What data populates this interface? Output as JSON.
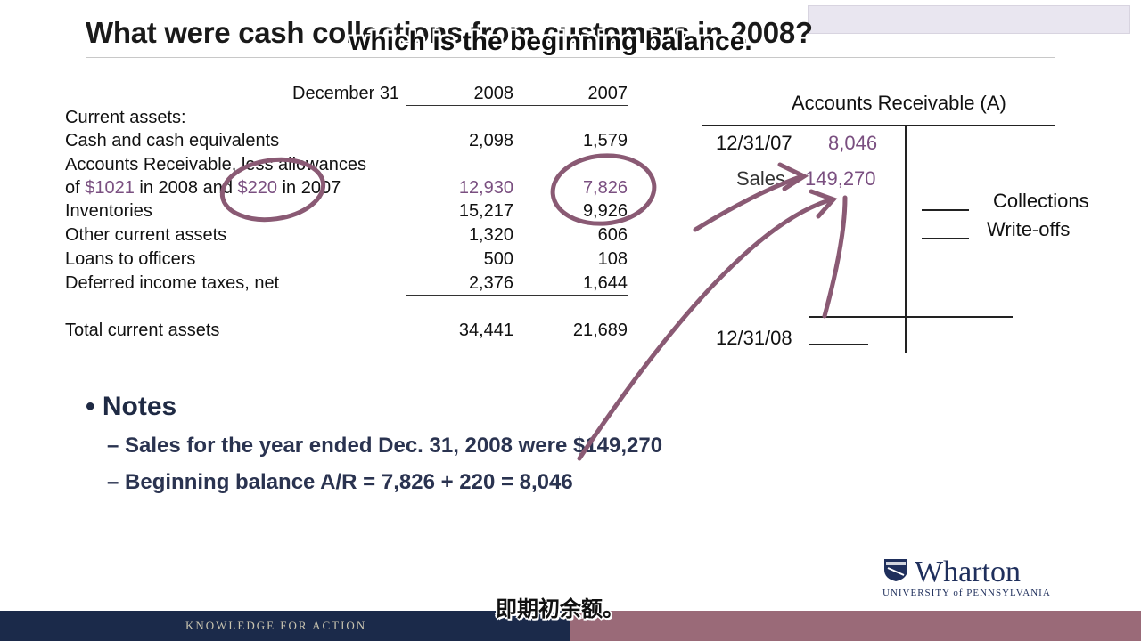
{
  "slide": {
    "title": "What were cash collections from customers in 2008?"
  },
  "subtitle_en": "which is the beginning balance.",
  "subtitle_cn": "即期初余额。",
  "balance_sheet": {
    "header_label": "December 31",
    "years": [
      "2008",
      "2007"
    ],
    "section_label": "Current assets:",
    "rows": [
      {
        "label": "Cash and cash equivalents",
        "v2008": "2,098",
        "v2007": "1,579"
      },
      {
        "label_line1": "Accounts Receivable, less allowances",
        "label_prefix": "of ",
        "allow2008": "$1021",
        "label_mid": " in 2008 and ",
        "allow2007": "$220",
        "label_suffix": " in 2007",
        "v2008": "12,930",
        "v2007": "7,826"
      },
      {
        "label": "Inventories",
        "v2008": "15,217",
        "v2007": "9,926"
      },
      {
        "label": "Other current assets",
        "v2008": "1,320",
        "v2007": "606"
      },
      {
        "label": "Loans to officers",
        "v2008": "500",
        "v2007": "108"
      },
      {
        "label": "Deferred income taxes, net",
        "v2008": "2,376",
        "v2007": "1,644"
      }
    ],
    "total": {
      "label": "Total current assets",
      "v2008": "34,441",
      "v2007": "21,689"
    }
  },
  "t_account": {
    "title": "Accounts Receivable (A)",
    "begin_date": "12/31/07",
    "begin_value": "8,046",
    "sales_label": "Sales",
    "sales_value": "149,270",
    "collections_label": "Collections",
    "writeoffs_label": "Write-offs",
    "end_date": "12/31/08"
  },
  "notes": {
    "heading": "Notes",
    "bullet_char": "•",
    "dash": "–",
    "items": [
      "Sales for the year ended Dec. 31, 2008 were $149,270",
      "Beginning balance A/R = 7,826 + 220 = 8,046"
    ]
  },
  "branding": {
    "logo_main": "Wharton",
    "logo_sub": "UNIVERSITY of PENNSYLVANIA",
    "footer_tagline": "KNOWLEDGE FOR ACTION",
    "navy": "#1b2a4a",
    "mauve": "#9a6a78",
    "annotation_color": "#8a5a74"
  }
}
